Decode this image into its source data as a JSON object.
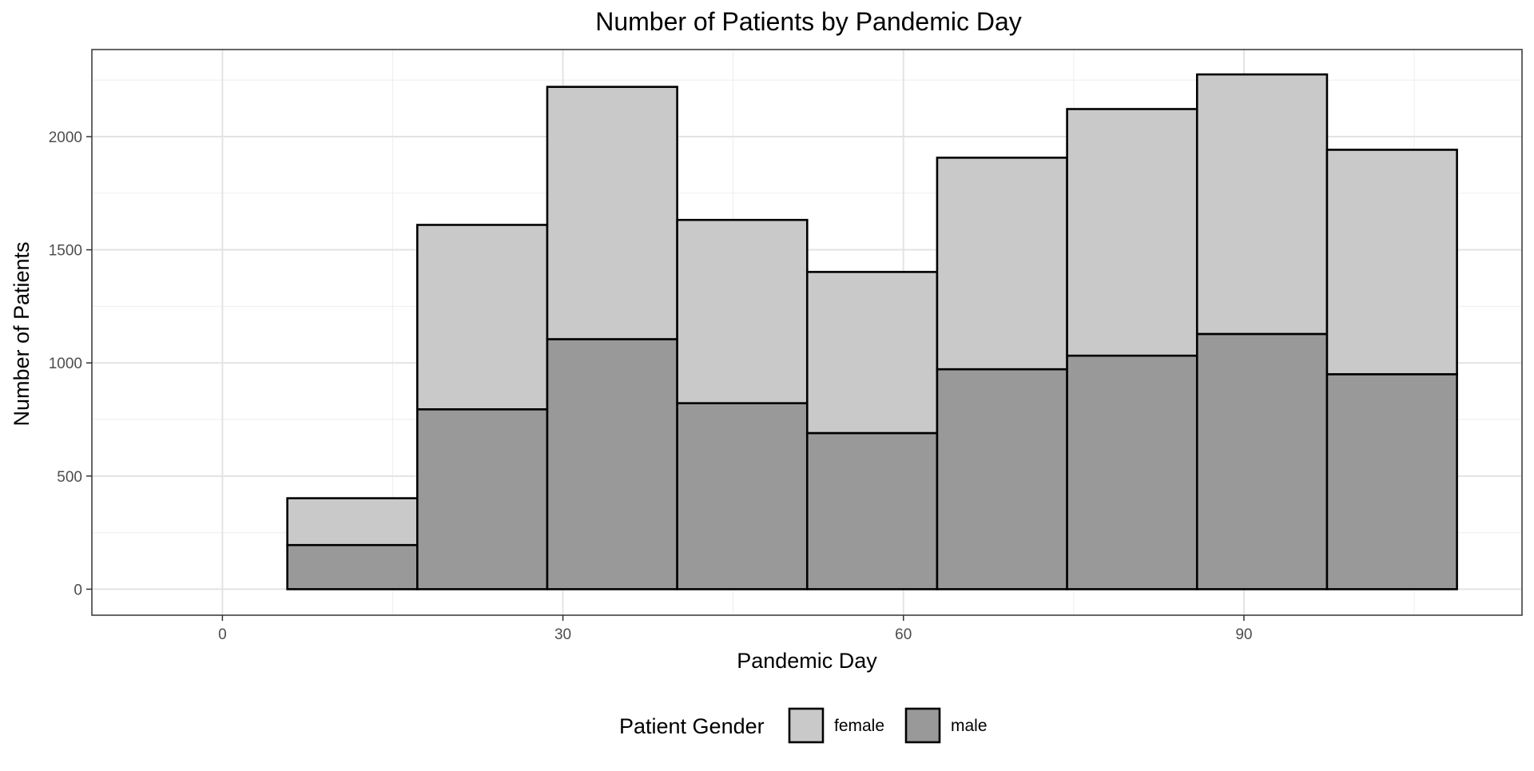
{
  "chart_data": {
    "type": "bar",
    "stacked": true,
    "title": "Number of Patients by Pandemic Day",
    "xlabel": "Pandemic Day",
    "ylabel": "Number of Patients",
    "xlim": [
      -11.5,
      114.5
    ],
    "ylim": [
      -115,
      2385
    ],
    "x_ticks": [
      0,
      30,
      60,
      90
    ],
    "y_ticks": [
      0,
      500,
      1000,
      1500,
      2000
    ],
    "grid": true,
    "bin_width": 11.45,
    "bins": [
      {
        "x0": -5.72,
        "x1": 5.72
      },
      {
        "x0": 5.72,
        "x1": 17.17
      },
      {
        "x0": 17.17,
        "x1": 28.62
      },
      {
        "x0": 28.62,
        "x1": 40.07
      },
      {
        "x0": 40.07,
        "x1": 51.52
      },
      {
        "x0": 51.52,
        "x1": 62.97
      },
      {
        "x0": 62.97,
        "x1": 74.42
      },
      {
        "x0": 74.42,
        "x1": 85.87
      },
      {
        "x0": 85.87,
        "x1": 97.32
      },
      {
        "x0": 97.32,
        "x1": 108.77
      }
    ],
    "series": [
      {
        "name": "male",
        "color": "#999999",
        "values": [
          0,
          195,
          795,
          1105,
          822,
          690,
          972,
          1032,
          1128,
          950
        ]
      },
      {
        "name": "female",
        "color": "#c9c9c9",
        "values": [
          0,
          207,
          815,
          1115,
          810,
          712,
          935,
          1090,
          1147,
          992
        ]
      }
    ],
    "legend": {
      "title": "Patient Gender",
      "position": "bottom",
      "items": [
        {
          "label": "female",
          "color": "#c9c9c9"
        },
        {
          "label": "male",
          "color": "#999999"
        }
      ]
    }
  }
}
